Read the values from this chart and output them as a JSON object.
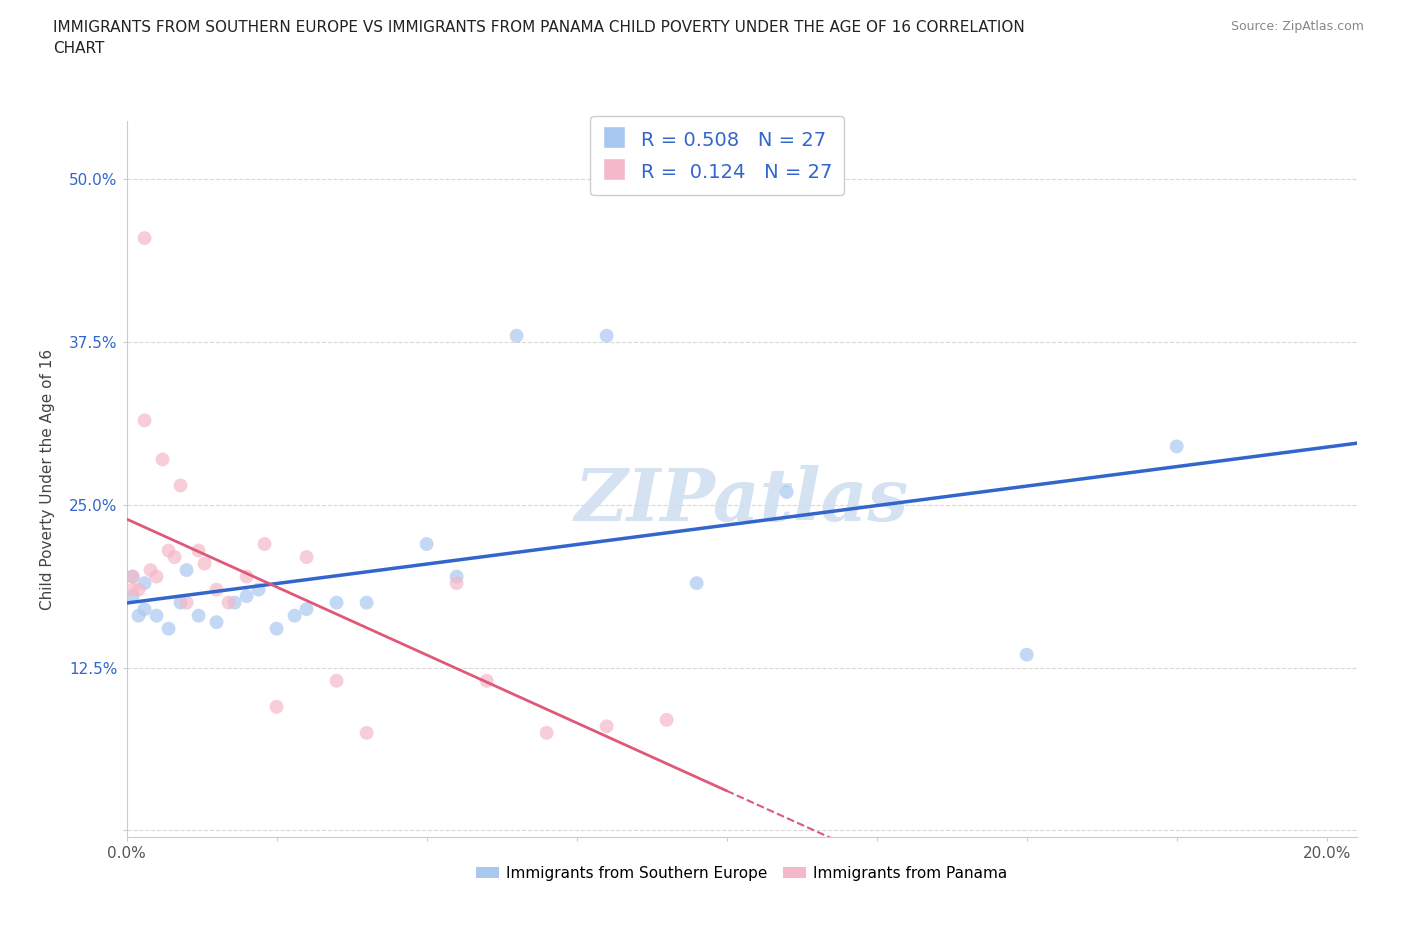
{
  "title_line1": "IMMIGRANTS FROM SOUTHERN EUROPE VS IMMIGRANTS FROM PANAMA CHILD POVERTY UNDER THE AGE OF 16 CORRELATION",
  "title_line2": "CHART",
  "source": "Source: ZipAtlas.com",
  "ylabel": "Child Poverty Under the Age of 16",
  "xlim": [
    0.0,
    0.205
  ],
  "ylim": [
    -0.005,
    0.545
  ],
  "xtick_positions": [
    0.0,
    0.025,
    0.05,
    0.075,
    0.1,
    0.125,
    0.15,
    0.175,
    0.2
  ],
  "xtick_labels": [
    "0.0%",
    "",
    "",
    "",
    "",
    "",
    "",
    "",
    "20.0%"
  ],
  "ytick_positions": [
    0.0,
    0.125,
    0.25,
    0.375,
    0.5
  ],
  "ytick_labels": [
    "",
    "12.5%",
    "25.0%",
    "37.5%",
    "50.0%"
  ],
  "legend_blue_r": "0.508",
  "legend_blue_n": "27",
  "legend_pink_r": "0.124",
  "legend_pink_n": "27",
  "legend_blue_label": "Immigrants from Southern Europe",
  "legend_pink_label": "Immigrants from Panama",
  "blue_color": "#a8c8f0",
  "pink_color": "#f5b8c8",
  "blue_line_color": "#3366cc",
  "pink_line_color": "#e05878",
  "scatter_alpha": 0.7,
  "scatter_size": 100,
  "blue_x": [
    0.001,
    0.001,
    0.002,
    0.003,
    0.003,
    0.005,
    0.007,
    0.009,
    0.01,
    0.012,
    0.015,
    0.018,
    0.02,
    0.022,
    0.025,
    0.028,
    0.03,
    0.035,
    0.04,
    0.05,
    0.055,
    0.065,
    0.08,
    0.095,
    0.11,
    0.15,
    0.175
  ],
  "blue_y": [
    0.195,
    0.18,
    0.165,
    0.19,
    0.17,
    0.165,
    0.155,
    0.175,
    0.2,
    0.165,
    0.16,
    0.175,
    0.18,
    0.185,
    0.155,
    0.165,
    0.17,
    0.175,
    0.175,
    0.22,
    0.195,
    0.38,
    0.38,
    0.19,
    0.26,
    0.135,
    0.295
  ],
  "pink_x": [
    0.001,
    0.001,
    0.002,
    0.003,
    0.003,
    0.004,
    0.005,
    0.006,
    0.007,
    0.008,
    0.009,
    0.01,
    0.012,
    0.013,
    0.015,
    0.017,
    0.02,
    0.023,
    0.025,
    0.03,
    0.035,
    0.04,
    0.055,
    0.06,
    0.07,
    0.08,
    0.09
  ],
  "pink_y": [
    0.195,
    0.185,
    0.185,
    0.455,
    0.315,
    0.2,
    0.195,
    0.285,
    0.215,
    0.21,
    0.265,
    0.175,
    0.215,
    0.205,
    0.185,
    0.175,
    0.195,
    0.22,
    0.095,
    0.21,
    0.115,
    0.075,
    0.19,
    0.115,
    0.075,
    0.08,
    0.085
  ],
  "grid_color": "#d8d8d8",
  "bg_color": "#ffffff",
  "watermark_color": "#d0dff0",
  "watermark_text": "ZIPatlas"
}
